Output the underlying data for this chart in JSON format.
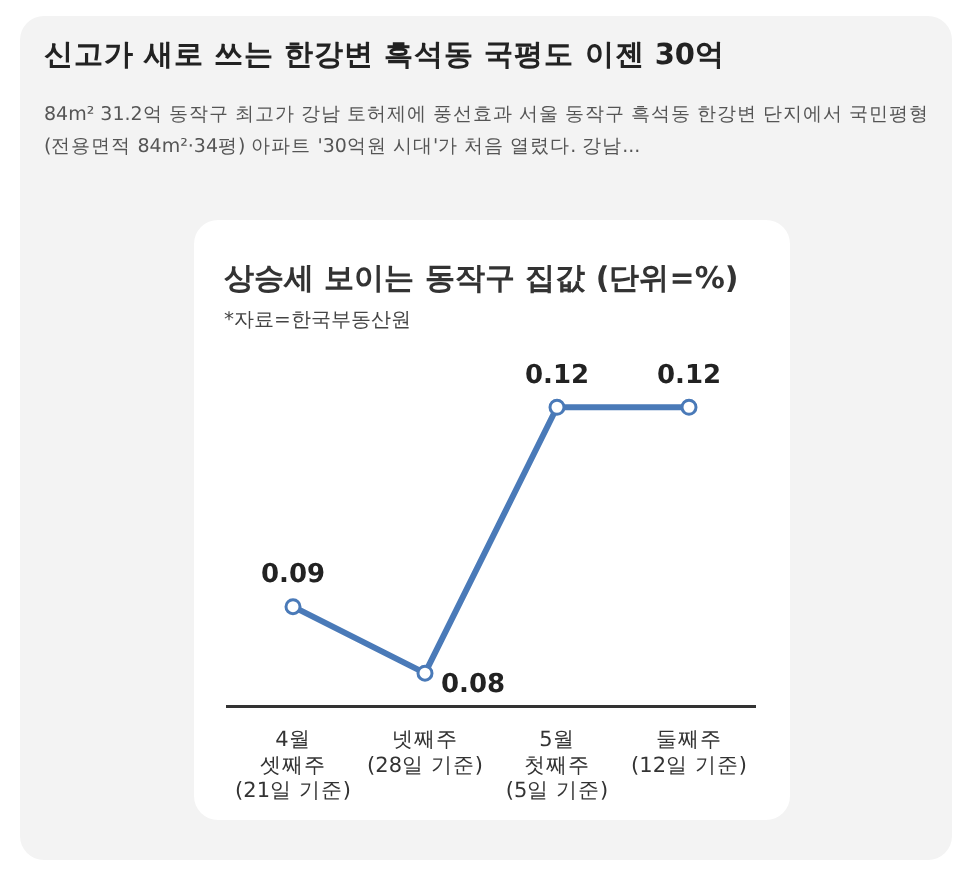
{
  "chart_data": {
    "type": "line",
    "title": "신고가 새로 쓰는 한강변 흑석동 국평도 이젠 30억",
    "subtitle": "84m² 31.2억 동작구 최고가 강남 토허제에 풍선효과 서울 동작구 흑석동 한강변 단지에서 국민평형(전용면적 84m²·34평) 아파트 '30억원 시대'가 처음 열렸다. 강남...",
    "annotations": [
      "상승세 보이는 동작구 집값 (단위=%)",
      "*자료=한국부동산원"
    ],
    "categories": [
      "4월\n셋째주\n(21일 기준)",
      "넷째주\n(28일 기준)",
      "5월\n첫째주\n(5일 기준)",
      "둘째주\n(12일 기준)"
    ],
    "series": [
      {
        "color": "#4a7ab8",
        "values": [
          0.09,
          0.08,
          0.12,
          0.12
        ]
      }
    ],
    "data_labels": true,
    "legend": false,
    "grid": false,
    "marker": "circle",
    "line_style": "solid"
  }
}
